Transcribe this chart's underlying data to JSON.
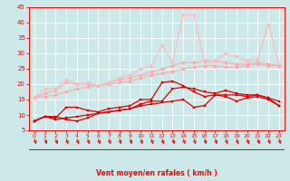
{
  "x": [
    0,
    1,
    2,
    3,
    4,
    5,
    6,
    7,
    8,
    9,
    10,
    11,
    12,
    13,
    14,
    15,
    16,
    17,
    18,
    19,
    20,
    21,
    22,
    23
  ],
  "series": [
    {
      "name": "line_light1",
      "color": "#ffaaaa",
      "lw": 0.8,
      "marker": "D",
      "markersize": 2.0,
      "values": [
        15.5,
        16.0,
        16.5,
        17.5,
        18.5,
        19.0,
        19.5,
        20.0,
        20.5,
        21.0,
        22.0,
        23.0,
        23.5,
        24.0,
        25.0,
        25.5,
        26.0,
        26.0,
        25.5,
        25.5,
        26.0,
        26.5,
        26.0,
        26.0
      ]
    },
    {
      "name": "line_light2",
      "color": "#ffaaaa",
      "lw": 0.8,
      "marker": "D",
      "markersize": 2.0,
      "values": [
        15.5,
        17.0,
        18.0,
        20.5,
        20.0,
        20.0,
        19.5,
        20.5,
        21.5,
        22.0,
        23.0,
        24.0,
        25.0,
        26.0,
        27.0,
        27.0,
        27.5,
        27.5,
        27.0,
        26.5,
        26.5,
        27.0,
        26.5,
        26.0
      ]
    },
    {
      "name": "line_lightest",
      "color": "#ffbbbb",
      "lw": 0.8,
      "marker": "D",
      "markersize": 2.0,
      "values": [
        15.5,
        18.5,
        18.5,
        21.5,
        20.0,
        20.5,
        19.5,
        20.5,
        22.0,
        23.0,
        25.0,
        26.0,
        32.5,
        27.0,
        42.5,
        42.5,
        27.0,
        27.5,
        30.0,
        29.0,
        27.5,
        28.0,
        39.5,
        26.5
      ]
    },
    {
      "name": "line_dark1",
      "color": "#dd0000",
      "lw": 0.9,
      "marker": "s",
      "markersize": 2.0,
      "values": [
        8.0,
        9.5,
        9.5,
        8.5,
        8.0,
        9.0,
        10.5,
        11.0,
        11.5,
        12.0,
        13.5,
        14.5,
        14.5,
        18.5,
        19.0,
        18.5,
        17.5,
        17.0,
        18.0,
        17.0,
        16.5,
        16.5,
        15.5,
        14.5
      ]
    },
    {
      "name": "line_dark2",
      "color": "#dd0000",
      "lw": 0.9,
      "marker": "s",
      "markersize": 2.0,
      "values": [
        8.0,
        9.5,
        9.0,
        12.5,
        12.5,
        11.5,
        11.0,
        12.0,
        12.5,
        13.0,
        15.0,
        15.0,
        20.5,
        21.0,
        19.5,
        17.5,
        16.0,
        16.5,
        16.5,
        16.5,
        16.0,
        16.5,
        15.5,
        13.0
      ]
    },
    {
      "name": "line_dark3",
      "color": "#dd0000",
      "lw": 0.9,
      "marker": "s",
      "markersize": 2.0,
      "values": [
        8.0,
        9.5,
        8.5,
        9.0,
        9.5,
        10.0,
        10.5,
        11.0,
        11.5,
        12.0,
        13.0,
        13.5,
        14.0,
        14.5,
        15.0,
        12.5,
        13.0,
        16.5,
        16.0,
        14.5,
        15.5,
        16.0,
        15.0,
        13.0
      ]
    }
  ],
  "xlabel": "Vent moyen/en rafales ( km/h )",
  "xlim": [
    -0.5,
    23.5
  ],
  "ylim": [
    5,
    45
  ],
  "yticks": [
    5,
    10,
    15,
    20,
    25,
    30,
    35,
    40,
    45
  ],
  "xticks": [
    0,
    1,
    2,
    3,
    4,
    5,
    6,
    7,
    8,
    9,
    10,
    11,
    12,
    13,
    14,
    15,
    16,
    17,
    18,
    19,
    20,
    21,
    22,
    23
  ],
  "bg_color": "#cce8e8",
  "grid_color": "#ffffff",
  "axis_color": "#ff0000",
  "tick_color": "#ff0000",
  "label_color": "#ff0000"
}
